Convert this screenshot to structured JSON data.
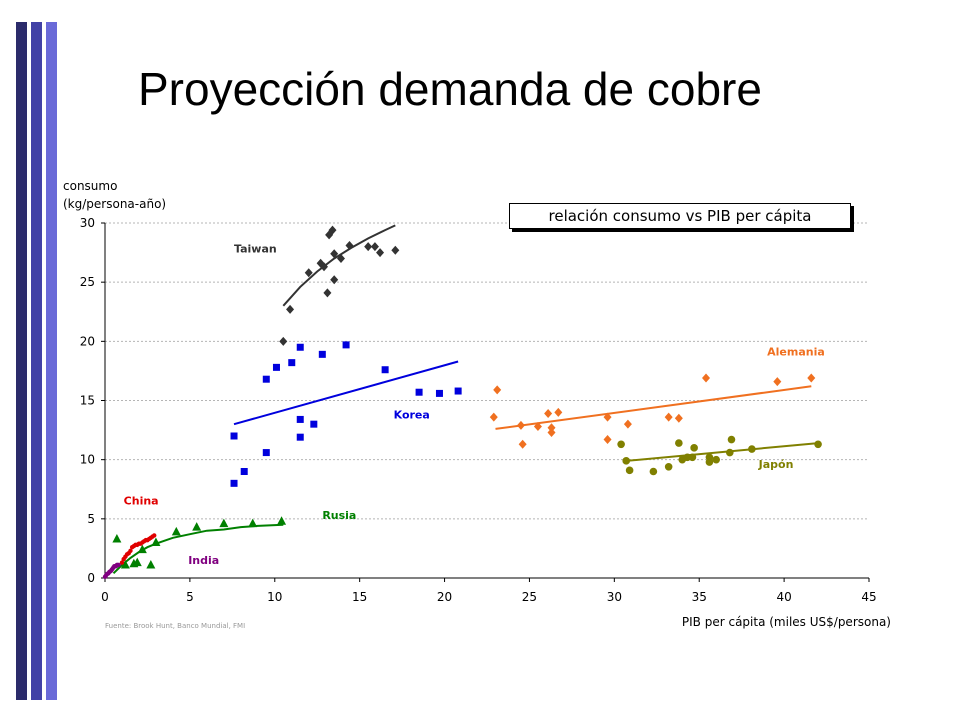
{
  "slide": {
    "title": "Proyección demanda de cobre",
    "callout": "relación consumo vs PIB per cápita",
    "source": "Fuente: Brook Hunt, Banco Mundial, FMI"
  },
  "colors": {
    "bar1": "#2b2b6b",
    "bar2": "#4141a6",
    "bar3": "#6a6ad8"
  },
  "chart_data": {
    "type": "scatter",
    "ylabel": [
      "consumo",
      "(kg/persona-año)"
    ],
    "xlabel": "PIB per cápita (miles US$/persona)",
    "xlim": [
      0,
      45
    ],
    "ylim": [
      0,
      30
    ],
    "xticks": [
      0,
      5,
      10,
      15,
      20,
      25,
      30,
      35,
      40,
      45
    ],
    "yticks": [
      0,
      5,
      10,
      15,
      20,
      25,
      30
    ],
    "grid": "horizontal dashed",
    "series": [
      {
        "name": "Taiwan",
        "color": "#333333",
        "marker": "diamond",
        "points": [
          [
            10.5,
            20
          ],
          [
            10.9,
            22.7
          ],
          [
            12.0,
            25.8
          ],
          [
            12.7,
            26.6
          ],
          [
            12.9,
            26.3
          ],
          [
            13.1,
            24.1
          ],
          [
            13.2,
            29.0
          ],
          [
            13.4,
            29.4
          ],
          [
            13.5,
            25.2
          ],
          [
            13.5,
            27.4
          ],
          [
            13.9,
            27.0
          ],
          [
            14.4,
            28.1
          ],
          [
            15.5,
            28.0
          ],
          [
            15.9,
            28.0
          ],
          [
            16.2,
            27.5
          ],
          [
            17.1,
            27.7
          ]
        ],
        "trend": [
          [
            10.5,
            23.0
          ],
          [
            11.5,
            24.6
          ],
          [
            12.5,
            25.9
          ],
          [
            13.5,
            27.0
          ],
          [
            14.5,
            27.9
          ],
          [
            15.5,
            28.7
          ],
          [
            16.5,
            29.4
          ],
          [
            17.1,
            29.8
          ]
        ]
      },
      {
        "name": "Korea",
        "color": "#0000dd",
        "marker": "square",
        "points": [
          [
            7.6,
            12.0
          ],
          [
            7.6,
            8.0
          ],
          [
            8.2,
            9.0
          ],
          [
            9.5,
            10.6
          ],
          [
            9.5,
            16.8
          ],
          [
            10.1,
            17.8
          ],
          [
            11.0,
            18.2
          ],
          [
            11.5,
            19.5
          ],
          [
            11.5,
            13.4
          ],
          [
            11.5,
            11.9
          ],
          [
            12.3,
            13.0
          ],
          [
            12.8,
            18.9
          ],
          [
            14.2,
            19.7
          ],
          [
            16.5,
            17.6
          ],
          [
            18.5,
            15.7
          ],
          [
            19.7,
            15.6
          ],
          [
            20.8,
            15.8
          ]
        ],
        "trend": [
          [
            7.6,
            13.0
          ],
          [
            20.8,
            18.3
          ]
        ]
      },
      {
        "name": "Alemania",
        "color": "#f07020",
        "marker": "diamond",
        "points": [
          [
            22.9,
            13.6
          ],
          [
            23.1,
            15.9
          ],
          [
            24.5,
            12.9
          ],
          [
            24.6,
            11.3
          ],
          [
            25.5,
            12.8
          ],
          [
            26.1,
            13.9
          ],
          [
            26.3,
            12.3
          ],
          [
            26.3,
            12.7
          ],
          [
            26.7,
            14.0
          ],
          [
            29.6,
            11.7
          ],
          [
            29.6,
            13.6
          ],
          [
            30.8,
            13.0
          ],
          [
            33.2,
            13.6
          ],
          [
            33.8,
            13.5
          ],
          [
            35.4,
            16.9
          ],
          [
            39.6,
            16.6
          ],
          [
            41.6,
            16.9
          ]
        ],
        "trend": [
          [
            23.0,
            12.6
          ],
          [
            41.6,
            16.2
          ]
        ]
      },
      {
        "name": "Japón",
        "color": "#808000",
        "marker": "circle",
        "points": [
          [
            30.4,
            11.3
          ],
          [
            30.7,
            9.9
          ],
          [
            30.9,
            9.1
          ],
          [
            32.3,
            9.0
          ],
          [
            33.2,
            9.4
          ],
          [
            33.8,
            11.4
          ],
          [
            34.0,
            10.0
          ],
          [
            34.3,
            10.2
          ],
          [
            34.6,
            10.2
          ],
          [
            34.7,
            11.0
          ],
          [
            35.6,
            10.2
          ],
          [
            35.6,
            9.8
          ],
          [
            36.0,
            10.0
          ],
          [
            36.8,
            10.6
          ],
          [
            36.9,
            11.7
          ],
          [
            38.1,
            10.9
          ],
          [
            42.0,
            11.3
          ]
        ],
        "trend": [
          [
            30.7,
            9.9
          ],
          [
            42.0,
            11.4
          ]
        ]
      },
      {
        "name": "Rusia",
        "color": "#008000",
        "marker": "triangle",
        "points": [
          [
            0.7,
            3.3
          ],
          [
            1.2,
            1.1
          ],
          [
            1.7,
            1.2
          ],
          [
            1.9,
            1.3
          ],
          [
            2.2,
            2.4
          ],
          [
            2.7,
            1.1
          ],
          [
            3.0,
            3.0
          ],
          [
            4.2,
            3.9
          ],
          [
            5.4,
            4.3
          ],
          [
            7.0,
            4.6
          ],
          [
            8.7,
            4.6
          ],
          [
            10.4,
            4.8
          ]
        ],
        "trend": [
          [
            0.5,
            0.4
          ],
          [
            1.0,
            1.1
          ],
          [
            1.5,
            1.7
          ],
          [
            2.0,
            2.2
          ],
          [
            2.5,
            2.6
          ],
          [
            3.0,
            2.9
          ],
          [
            4.0,
            3.4
          ],
          [
            5.0,
            3.7
          ],
          [
            6.0,
            4.0
          ],
          [
            7.0,
            4.1
          ],
          [
            8.0,
            4.3
          ],
          [
            9.0,
            4.4
          ],
          [
            10.5,
            4.5
          ]
        ]
      },
      {
        "name": "China",
        "color": "#e00000",
        "marker": "smalldot",
        "points": [
          [
            1.0,
            1.3
          ],
          [
            1.1,
            1.6
          ],
          [
            1.2,
            1.8
          ],
          [
            1.3,
            2.0
          ],
          [
            1.4,
            2.1
          ],
          [
            1.5,
            2.3
          ],
          [
            1.6,
            2.6
          ],
          [
            1.7,
            2.7
          ],
          [
            1.8,
            2.8
          ],
          [
            1.9,
            2.8
          ],
          [
            2.0,
            2.9
          ],
          [
            2.1,
            2.9
          ],
          [
            2.2,
            3.0
          ],
          [
            2.3,
            3.1
          ],
          [
            2.4,
            3.2
          ],
          [
            2.5,
            3.2
          ],
          [
            2.6,
            3.3
          ],
          [
            2.7,
            3.4
          ],
          [
            2.8,
            3.5
          ],
          [
            2.9,
            3.6
          ]
        ]
      },
      {
        "name": "India",
        "color": "#800080",
        "marker": "smalldot",
        "points": [
          [
            0.0,
            0.1
          ],
          [
            0.05,
            0.2
          ],
          [
            0.1,
            0.3
          ],
          [
            0.15,
            0.35
          ],
          [
            0.2,
            0.4
          ],
          [
            0.25,
            0.5
          ],
          [
            0.3,
            0.55
          ],
          [
            0.35,
            0.6
          ],
          [
            0.4,
            0.7
          ],
          [
            0.45,
            0.8
          ],
          [
            0.5,
            0.9
          ],
          [
            0.55,
            1.0
          ],
          [
            0.6,
            1.0
          ],
          [
            0.65,
            1.0
          ],
          [
            0.7,
            1.1
          ],
          [
            0.75,
            1.1
          ],
          [
            0.8,
            1.1
          ]
        ]
      }
    ],
    "annotations": [
      {
        "text": "Taiwan",
        "color": "#333333",
        "x": 7.6,
        "y": 27.5
      },
      {
        "text": "Korea",
        "color": "#0000dd",
        "x": 17.0,
        "y": 13.5
      },
      {
        "text": "Alemania",
        "color": "#f07020",
        "x": 39.0,
        "y": 18.8
      },
      {
        "text": "Japón",
        "color": "#808000",
        "x": 38.5,
        "y": 9.3
      },
      {
        "text": "China",
        "color": "#e00000",
        "x": 1.1,
        "y": 6.2
      },
      {
        "text": "Rusia",
        "color": "#008000",
        "x": 12.8,
        "y": 5.0
      },
      {
        "text": "India",
        "color": "#800080",
        "x": 4.9,
        "y": 1.2
      }
    ]
  }
}
